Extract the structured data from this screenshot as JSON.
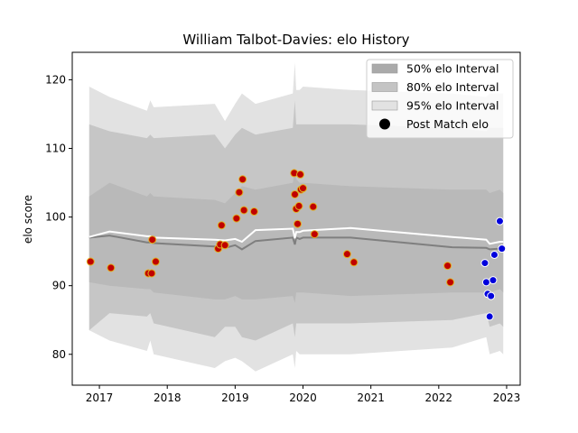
{
  "chart_data": {
    "type": "scatter",
    "title": "William Talbot-Davies: elo History",
    "xlabel": "",
    "ylabel": "elo score",
    "xlim": [
      2016.6,
      2023.2
    ],
    "ylim": [
      75.5,
      124.0
    ],
    "x_ticks": [
      2017,
      2018,
      2019,
      2020,
      2021,
      2022,
      2023
    ],
    "y_ticks": [
      80,
      90,
      100,
      110,
      120
    ],
    "grid": false,
    "legend_position": "top-right",
    "legend": [
      {
        "label": "50% elo Interval",
        "kind": "band",
        "color": "#aaaaaa"
      },
      {
        "label": "80% elo Interval",
        "kind": "band",
        "color": "#c4c4c4"
      },
      {
        "label": "95% elo Interval",
        "kind": "band",
        "color": "#e2e2e2"
      },
      {
        "label": "Post Match elo",
        "kind": "marker",
        "color": "#000000"
      }
    ],
    "colors": {
      "band_95": "#e2e2e2",
      "band_80": "#c6c6c6",
      "band_50": "#b9b9b9",
      "median_line": "#7f7f7f",
      "mean_line": "#ffffff",
      "point_past": "#c00000",
      "point_past_edge": "#e0b020",
      "point_recent": "#0000dd",
      "point_recent_edge": "#ffffff"
    },
    "bands": {
      "x": [
        2016.85,
        2017.15,
        2017.7,
        2017.75,
        2017.8,
        2018.7,
        2018.85,
        2019.0,
        2019.1,
        2019.3,
        2019.85,
        2019.88,
        2019.9,
        2019.95,
        2020.0,
        2020.7,
        2022.2,
        2022.7,
        2022.75,
        2022.9,
        2022.95
      ],
      "lo95": [
        83.5,
        82.0,
        80.5,
        82.0,
        80.0,
        78.0,
        79.0,
        79.5,
        79.0,
        77.5,
        80.0,
        78.0,
        80.5,
        80.0,
        80.0,
        80.0,
        81.0,
        82.5,
        80.0,
        80.5,
        80.0
      ],
      "hi95": [
        119.0,
        117.5,
        115.5,
        117.0,
        116.0,
        116.5,
        114.0,
        116.5,
        118.0,
        116.5,
        118.0,
        122.5,
        118.5,
        118.5,
        119.0,
        118.5,
        118.0,
        117.5,
        118.0,
        118.0,
        118.0
      ],
      "lo80": [
        83.5,
        86.0,
        85.5,
        86.0,
        84.5,
        82.5,
        84.0,
        84.0,
        82.5,
        82.0,
        84.5,
        82.5,
        84.5,
        84.5,
        84.5,
        84.5,
        85.0,
        86.0,
        84.0,
        84.5,
        84.0
      ],
      "hi80": [
        113.5,
        112.5,
        111.5,
        112.0,
        111.5,
        112.0,
        110.0,
        112.0,
        113.0,
        112.0,
        113.0,
        117.0,
        113.5,
        113.5,
        113.5,
        113.5,
        113.0,
        112.5,
        113.0,
        113.0,
        113.0
      ],
      "lo50": [
        90.5,
        90.0,
        89.5,
        89.5,
        89.0,
        88.0,
        88.0,
        88.5,
        88.0,
        88.0,
        88.5,
        87.5,
        89.0,
        89.0,
        89.0,
        88.5,
        89.0,
        89.0,
        89.0,
        89.5,
        89.0
      ],
      "hi50": [
        103.0,
        105.0,
        103.0,
        103.5,
        103.0,
        102.5,
        102.0,
        103.5,
        104.5,
        104.0,
        105.0,
        107.0,
        105.5,
        105.0,
        105.0,
        104.5,
        104.0,
        104.0,
        103.5,
        104.0,
        103.5
      ],
      "median": [
        97.0,
        97.3,
        96.3,
        96.3,
        96.2,
        95.7,
        95.5,
        95.9,
        95.3,
        96.5,
        97.0,
        96.0,
        97.0,
        96.8,
        97.0,
        97.0,
        95.6,
        95.5,
        95.3,
        95.4,
        95.4
      ],
      "mean": [
        97.1,
        97.9,
        97.2,
        97.2,
        97.0,
        96.7,
        96.6,
        96.8,
        96.4,
        98.1,
        98.3,
        96.9,
        97.8,
        97.8,
        98.0,
        98.4,
        97.1,
        96.7,
        96.1,
        96.4,
        96.4
      ]
    },
    "points_past": [
      {
        "x": 2016.87,
        "y": 93.5
      },
      {
        "x": 2017.17,
        "y": 92.6
      },
      {
        "x": 2017.72,
        "y": 91.8
      },
      {
        "x": 2017.77,
        "y": 91.8
      },
      {
        "x": 2017.78,
        "y": 96.7
      },
      {
        "x": 2017.83,
        "y": 93.5
      },
      {
        "x": 2018.75,
        "y": 95.4
      },
      {
        "x": 2018.78,
        "y": 96.0
      },
      {
        "x": 2018.8,
        "y": 98.8
      },
      {
        "x": 2018.85,
        "y": 95.9
      },
      {
        "x": 2019.02,
        "y": 99.8
      },
      {
        "x": 2019.06,
        "y": 103.6
      },
      {
        "x": 2019.11,
        "y": 105.5
      },
      {
        "x": 2019.13,
        "y": 101.0
      },
      {
        "x": 2019.28,
        "y": 100.8
      },
      {
        "x": 2019.87,
        "y": 106.4
      },
      {
        "x": 2019.88,
        "y": 103.3
      },
      {
        "x": 2019.9,
        "y": 101.2
      },
      {
        "x": 2019.92,
        "y": 99.0
      },
      {
        "x": 2019.94,
        "y": 101.6
      },
      {
        "x": 2019.96,
        "y": 106.2
      },
      {
        "x": 2019.97,
        "y": 104.0
      },
      {
        "x": 2020.0,
        "y": 104.2
      },
      {
        "x": 2020.15,
        "y": 101.5
      },
      {
        "x": 2020.17,
        "y": 97.5
      },
      {
        "x": 2020.65,
        "y": 94.6
      },
      {
        "x": 2020.75,
        "y": 93.4
      },
      {
        "x": 2022.13,
        "y": 92.9
      },
      {
        "x": 2022.17,
        "y": 90.5
      }
    ],
    "points_recent": [
      {
        "x": 2022.68,
        "y": 93.3
      },
      {
        "x": 2022.7,
        "y": 90.5
      },
      {
        "x": 2022.72,
        "y": 88.8
      },
      {
        "x": 2022.75,
        "y": 85.5
      },
      {
        "x": 2022.77,
        "y": 88.5
      },
      {
        "x": 2022.8,
        "y": 90.8
      },
      {
        "x": 2022.82,
        "y": 94.5
      },
      {
        "x": 2022.9,
        "y": 99.4
      },
      {
        "x": 2022.93,
        "y": 95.4
      }
    ]
  }
}
